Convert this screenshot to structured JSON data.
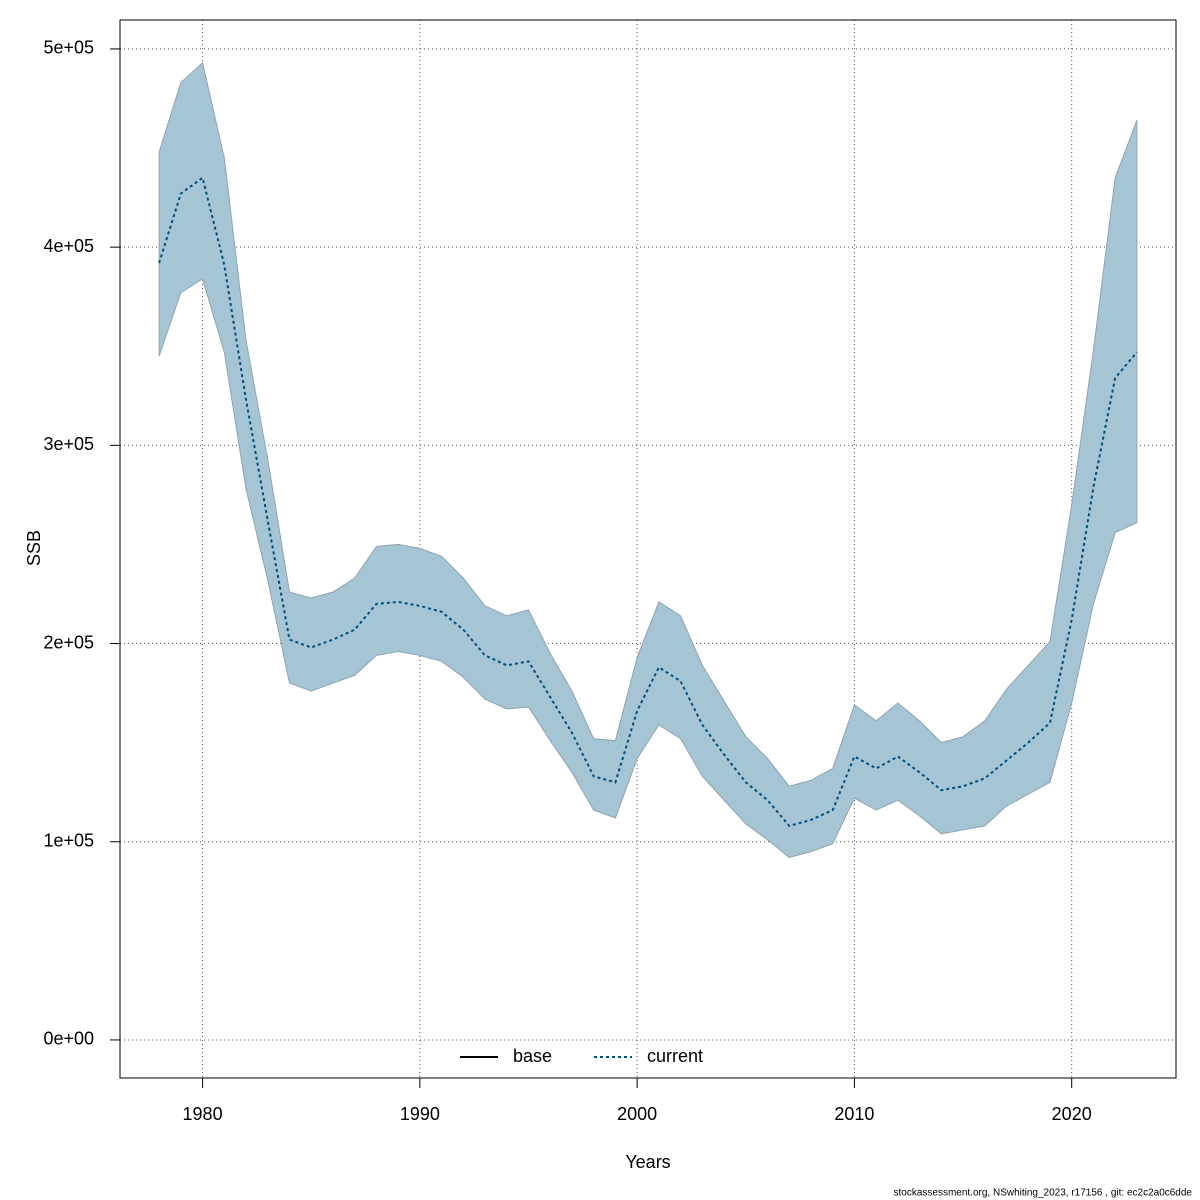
{
  "chart_data": {
    "type": "line",
    "xlabel": "Years",
    "ylabel": "SSB",
    "footer": "stockassessment.org, NSwhiting_2023, r17156 , git: ec2c2a0c6dde",
    "x": [
      1978,
      1979,
      1980,
      1981,
      1982,
      1983,
      1984,
      1985,
      1986,
      1987,
      1988,
      1989,
      1990,
      1991,
      1992,
      1993,
      1994,
      1995,
      1996,
      1997,
      1998,
      1999,
      2000,
      2001,
      2002,
      2003,
      2004,
      2005,
      2006,
      2007,
      2008,
      2009,
      2010,
      2011,
      2012,
      2013,
      2014,
      2015,
      2016,
      2017,
      2018,
      2019,
      2020,
      2021,
      2022,
      2023
    ],
    "series": [
      {
        "name": "base",
        "color": "#000000",
        "style": "solid"
      },
      {
        "name": "current",
        "color": "#00507e",
        "style": "dotted",
        "band_color": "#a5c4d4",
        "values": [
          392000,
          427000,
          435000,
          391000,
          323000,
          262000,
          202000,
          198000,
          202000,
          207000,
          220000,
          221000,
          219000,
          216000,
          207000,
          194000,
          189000,
          191000,
          173000,
          155000,
          133000,
          130000,
          166000,
          188000,
          181000,
          159000,
          144000,
          130000,
          121000,
          108000,
          111000,
          116000,
          143000,
          137000,
          143000,
          135000,
          126000,
          128000,
          132000,
          141000,
          150000,
          160000,
          212000,
          279000,
          334000,
          347000
        ],
        "upper": [
          448000,
          483000,
          493000,
          445000,
          353000,
          293000,
          226000,
          223000,
          226000,
          233000,
          249000,
          250000,
          248000,
          244000,
          233000,
          219000,
          214000,
          217000,
          195000,
          176000,
          152000,
          151000,
          193000,
          221000,
          214000,
          189000,
          171000,
          153000,
          142000,
          128000,
          131000,
          137000,
          169000,
          161000,
          170000,
          161000,
          150000,
          153000,
          161000,
          177000,
          189000,
          201000,
          270000,
          348000,
          435000,
          464000
        ],
        "lower": [
          345000,
          377000,
          384000,
          347000,
          278000,
          232000,
          180000,
          176000,
          180000,
          184000,
          194000,
          196000,
          194000,
          191000,
          183000,
          172000,
          167000,
          168000,
          151000,
          135000,
          116000,
          112000,
          142000,
          159000,
          152000,
          133000,
          121000,
          109000,
          101000,
          92000,
          95000,
          99000,
          122000,
          116000,
          121000,
          113000,
          104000,
          106000,
          108000,
          118000,
          124000,
          130000,
          170000,
          220000,
          256000,
          261000
        ]
      }
    ],
    "xlim": [
      1976.2,
      2024.8
    ],
    "xticks": [
      1980,
      1990,
      2000,
      2010,
      2020
    ],
    "ylim": [
      -19200,
      514600
    ],
    "yticks": [
      {
        "value": 0,
        "label": "0e+00"
      },
      {
        "value": 100000,
        "label": "1e+05"
      },
      {
        "value": 200000,
        "label": "2e+05"
      },
      {
        "value": 300000,
        "label": "3e+05"
      },
      {
        "value": 400000,
        "label": "4e+05"
      },
      {
        "value": 500000,
        "label": "5e+05"
      }
    ],
    "grid": true,
    "legend_position": "bottom"
  }
}
